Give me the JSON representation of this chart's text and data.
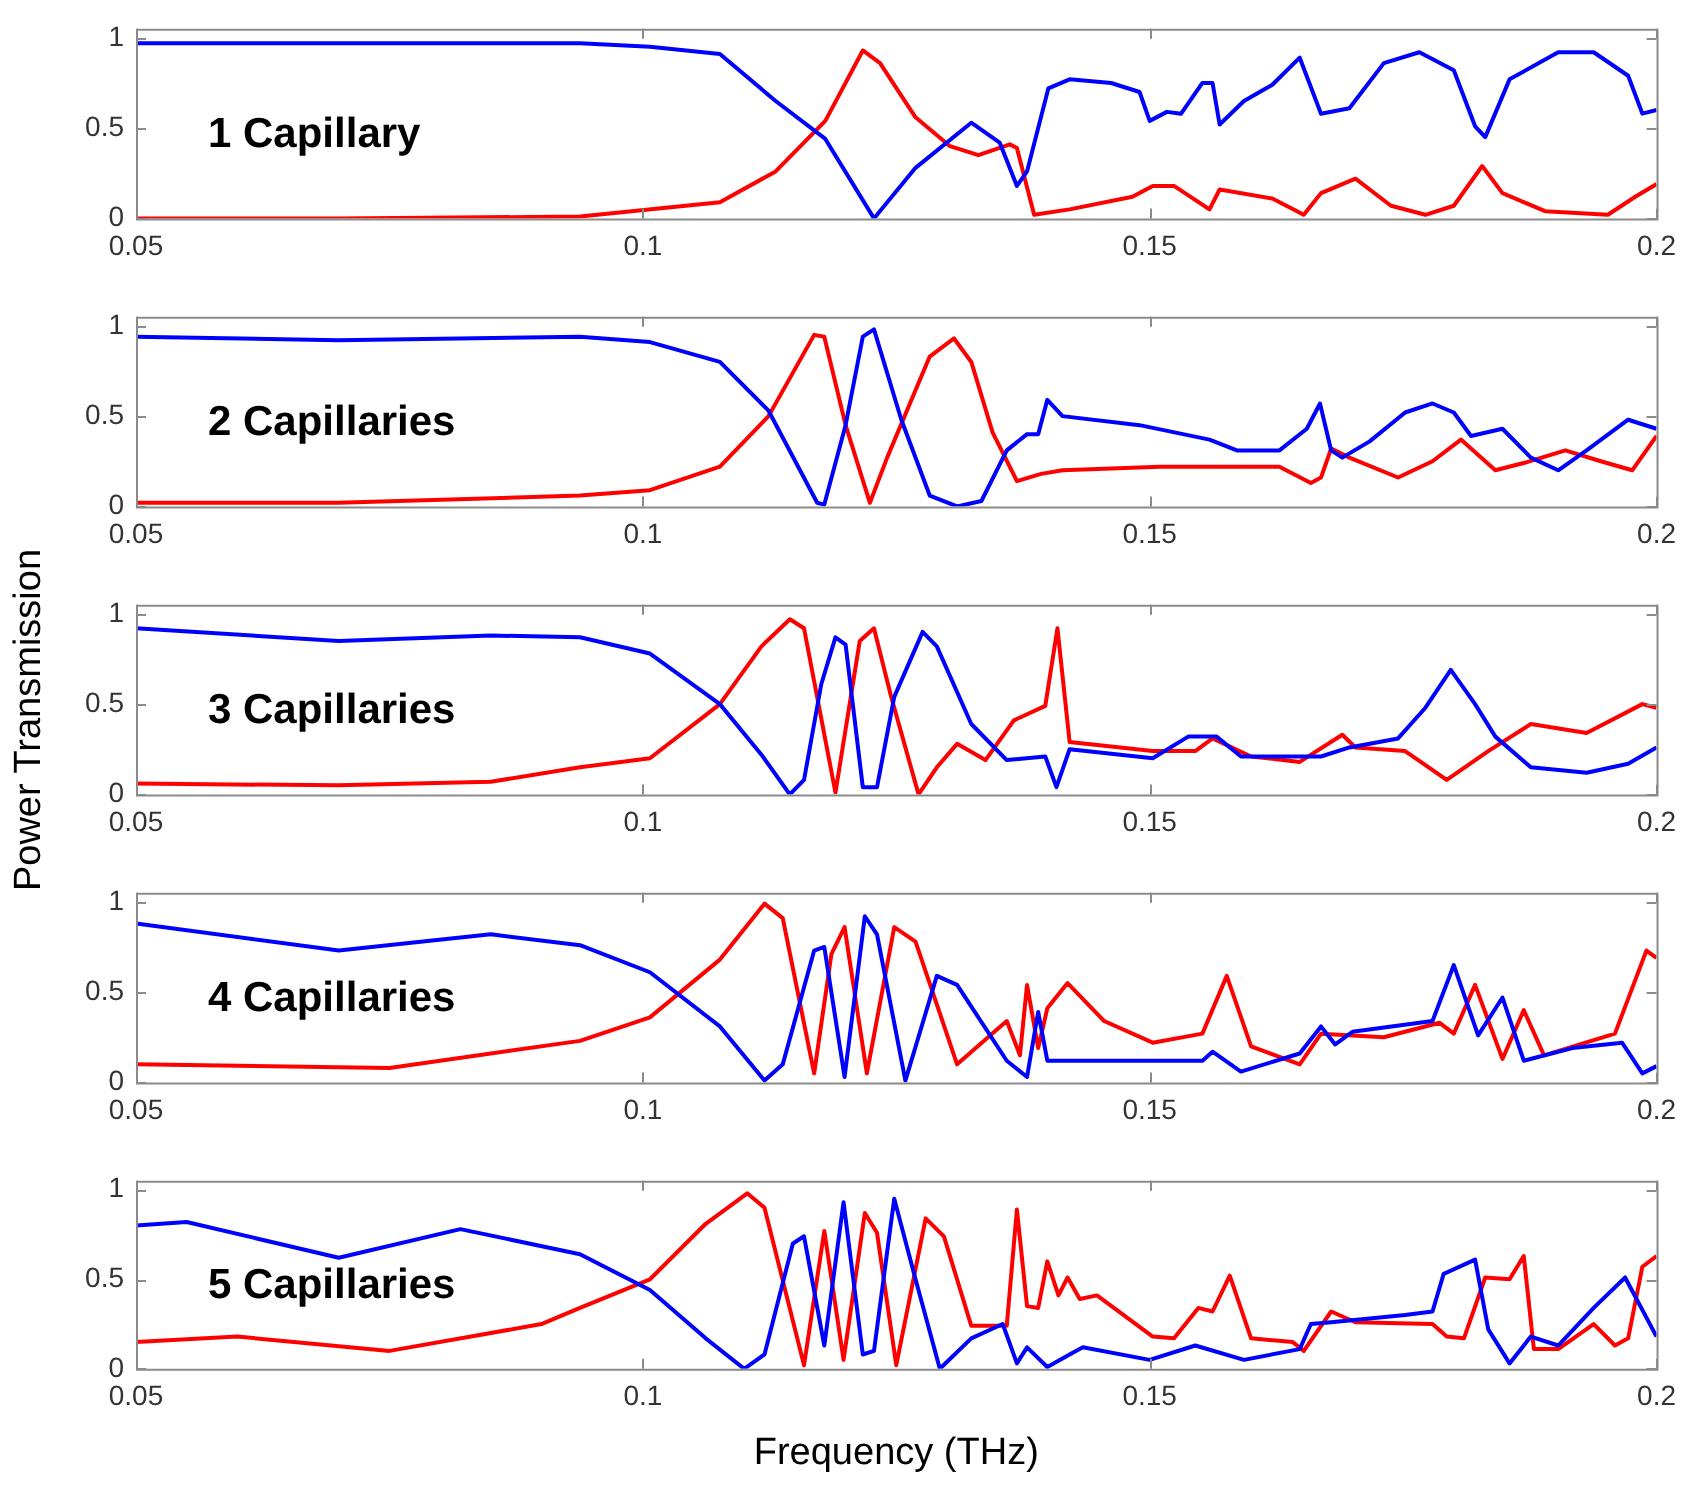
{
  "chart_data": [
    {
      "type": "line",
      "annotations": [
        "1 Capillary"
      ],
      "xlim": [
        0.05,
        0.2
      ],
      "xticks": [
        0.05,
        0.1,
        0.15,
        0.2
      ],
      "ylim": [
        0,
        1.05
      ],
      "yticks": [
        0,
        0.5,
        1
      ],
      "series": [
        {
          "color": "#0000ff",
          "x": [
            0.05,
            0.07,
            0.0938,
            0.1007,
            0.1076,
            0.1131,
            0.118,
            0.1228,
            0.1269,
            0.1324,
            0.1352,
            0.1369,
            0.1379,
            0.14,
            0.1421,
            0.1462,
            0.149,
            0.15,
            0.1517,
            0.1531,
            0.1552,
            0.1562,
            0.1569,
            0.1593,
            0.1621,
            0.1648,
            0.1669,
            0.1697,
            0.1731,
            0.1766,
            0.18,
            0.1821,
            0.1831,
            0.1855,
            0.1903,
            0.1938,
            0.1972,
            0.1986,
            0.2
          ],
          "values": [
            0.97,
            0.97,
            0.97,
            0.95,
            0.91,
            0.65,
            0.44,
            0,
            0.28,
            0.53,
            0.42,
            0.18,
            0.26,
            0.72,
            0.77,
            0.75,
            0.7,
            0.54,
            0.59,
            0.58,
            0.75,
            0.75,
            0.52,
            0.65,
            0.74,
            0.89,
            0.58,
            0.61,
            0.86,
            0.92,
            0.82,
            0.51,
            0.45,
            0.77,
            0.92,
            0.92,
            0.79,
            0.58,
            0.6
          ]
        },
        {
          "color": "#ff0000",
          "x": [
            0.05,
            0.07,
            0.0938,
            0.1076,
            0.1131,
            0.118,
            0.1217,
            0.1234,
            0.1269,
            0.1303,
            0.1331,
            0.1362,
            0.1369,
            0.1386,
            0.1421,
            0.1483,
            0.1503,
            0.1524,
            0.1559,
            0.1569,
            0.1621,
            0.1652,
            0.1669,
            0.1703,
            0.1738,
            0.1772,
            0.18,
            0.1828,
            0.1848,
            0.189,
            0.1952,
            0.1979,
            0.2
          ],
          "values": [
            0,
            0,
            0.01,
            0.09,
            0.26,
            0.54,
            0.93,
            0.86,
            0.56,
            0.4,
            0.35,
            0.41,
            0.39,
            0.02,
            0.05,
            0.12,
            0.18,
            0.18,
            0.05,
            0.16,
            0.11,
            0.02,
            0.14,
            0.22,
            0.07,
            0.02,
            0.07,
            0.29,
            0.14,
            0.04,
            0.02,
            0.12,
            0.19
          ]
        }
      ]
    },
    {
      "type": "line",
      "annotations": [
        "2 Capillaries"
      ],
      "xlim": [
        0.05,
        0.2
      ],
      "xticks": [
        0.05,
        0.1,
        0.15,
        0.2
      ],
      "ylim": [
        0,
        1.05
      ],
      "yticks": [
        0,
        0.5,
        1
      ],
      "series": [
        {
          "color": "#0000ff",
          "x": [
            0.05,
            0.07,
            0.0938,
            0.1007,
            0.1076,
            0.1124,
            0.1172,
            0.1179,
            0.12,
            0.1217,
            0.1228,
            0.1255,
            0.1283,
            0.131,
            0.1334,
            0.1359,
            0.1379,
            0.139,
            0.1399,
            0.1414,
            0.149,
            0.1559,
            0.1586,
            0.1628,
            0.1655,
            0.1668,
            0.1679,
            0.169,
            0.1717,
            0.1752,
            0.1779,
            0.18,
            0.1817,
            0.1848,
            0.1876,
            0.1903,
            0.1931,
            0.1972,
            0.2
          ],
          "values": [
            0.94,
            0.92,
            0.94,
            0.91,
            0.8,
            0.53,
            0.02,
            0.01,
            0.45,
            0.94,
            0.98,
            0.48,
            0.06,
            0,
            0.03,
            0.31,
            0.4,
            0.4,
            0.59,
            0.5,
            0.45,
            0.37,
            0.31,
            0.31,
            0.43,
            0.57,
            0.31,
            0.27,
            0.36,
            0.52,
            0.57,
            0.52,
            0.39,
            0.43,
            0.27,
            0.2,
            0.31,
            0.48,
            0.43
          ]
        },
        {
          "color": "#ff0000",
          "x": [
            0.05,
            0.07,
            0.0938,
            0.1007,
            0.1076,
            0.1124,
            0.1169,
            0.1179,
            0.12,
            0.1224,
            0.1241,
            0.1283,
            0.1307,
            0.1324,
            0.1345,
            0.1369,
            0.1393,
            0.1414,
            0.151,
            0.1628,
            0.1659,
            0.1669,
            0.1679,
            0.1697,
            0.1745,
            0.1779,
            0.1807,
            0.1841,
            0.1869,
            0.191,
            0.1945,
            0.1976,
            0.2
          ],
          "values": [
            0.02,
            0.02,
            0.06,
            0.09,
            0.22,
            0.5,
            0.95,
            0.94,
            0.45,
            0.02,
            0.27,
            0.83,
            0.93,
            0.8,
            0.41,
            0.14,
            0.18,
            0.2,
            0.22,
            0.22,
            0.13,
            0.16,
            0.32,
            0.27,
            0.16,
            0.25,
            0.37,
            0.2,
            0.24,
            0.31,
            0.25,
            0.2,
            0.39
          ]
        }
      ]
    },
    {
      "type": "line",
      "annotations": [
        "3 Capillaries"
      ],
      "ylabel": "Power Transmission",
      "xlim": [
        0.05,
        0.2
      ],
      "xticks": [
        0.05,
        0.1,
        0.15,
        0.2
      ],
      "ylim": [
        0,
        1.05
      ],
      "yticks": [
        0,
        0.5,
        1
      ],
      "series": [
        {
          "color": "#0000ff",
          "x": [
            0.05,
            0.07,
            0.085,
            0.0938,
            0.1007,
            0.1076,
            0.1117,
            0.1145,
            0.1159,
            0.1176,
            0.119,
            0.12,
            0.1217,
            0.1231,
            0.1248,
            0.1276,
            0.129,
            0.1324,
            0.1359,
            0.1397,
            0.1408,
            0.1421,
            0.1503,
            0.1538,
            0.1566,
            0.159,
            0.1669,
            0.1697,
            0.1745,
            0.1772,
            0.1797,
            0.1821,
            0.1841,
            0.1876,
            0.1931,
            0.1972,
            0.2
          ],
          "values": [
            0.92,
            0.85,
            0.88,
            0.87,
            0.78,
            0.5,
            0.22,
            0,
            0.08,
            0.61,
            0.87,
            0.83,
            0.04,
            0.04,
            0.54,
            0.9,
            0.82,
            0.39,
            0.19,
            0.21,
            0.04,
            0.25,
            0.2,
            0.32,
            0.32,
            0.21,
            0.21,
            0.26,
            0.31,
            0.48,
            0.69,
            0.5,
            0.32,
            0.15,
            0.12,
            0.17,
            0.26
          ]
        },
        {
          "color": "#ff0000",
          "x": [
            0.05,
            0.07,
            0.085,
            0.0938,
            0.1007,
            0.1076,
            0.1117,
            0.1145,
            0.1159,
            0.119,
            0.1214,
            0.1228,
            0.1245,
            0.1272,
            0.129,
            0.131,
            0.1338,
            0.1366,
            0.1397,
            0.1409,
            0.1421,
            0.1503,
            0.1545,
            0.1562,
            0.16,
            0.1648,
            0.169,
            0.1703,
            0.1752,
            0.1793,
            0.1834,
            0.1876,
            0.1931,
            0.1986,
            0.2
          ],
          "values": [
            0.06,
            0.05,
            0.07,
            0.15,
            0.2,
            0.5,
            0.82,
            0.97,
            0.92,
            0.01,
            0.85,
            0.92,
            0.54,
            0,
            0.15,
            0.28,
            0.19,
            0.41,
            0.49,
            0.92,
            0.29,
            0.24,
            0.24,
            0.31,
            0.21,
            0.18,
            0.33,
            0.26,
            0.24,
            0.08,
            0.24,
            0.39,
            0.34,
            0.5,
            0.48
          ]
        }
      ]
    },
    {
      "type": "line",
      "annotations": [
        "4 Capillaries"
      ],
      "xlim": [
        0.05,
        0.2
      ],
      "xticks": [
        0.05,
        0.1,
        0.15,
        0.2
      ],
      "ylim": [
        0,
        1.05
      ],
      "yticks": [
        0,
        0.5,
        1
      ],
      "series": [
        {
          "color": "#0000ff",
          "x": [
            0.05,
            0.07,
            0.085,
            0.0938,
            0.1007,
            0.1076,
            0.112,
            0.1138,
            0.1169,
            0.1179,
            0.1199,
            0.1219,
            0.1231,
            0.1259,
            0.129,
            0.131,
            0.1359,
            0.1379,
            0.139,
            0.1399,
            0.149,
            0.1552,
            0.1562,
            0.159,
            0.1648,
            0.1669,
            0.1683,
            0.17,
            0.1779,
            0.18,
            0.1824,
            0.1848,
            0.1869,
            0.1917,
            0.1966,
            0.1986,
            0.2
          ],
          "values": [
            0.88,
            0.73,
            0.82,
            0.76,
            0.61,
            0.31,
            0.01,
            0.1,
            0.73,
            0.75,
            0.03,
            0.92,
            0.82,
            0.01,
            0.59,
            0.54,
            0.12,
            0.03,
            0.39,
            0.12,
            0.12,
            0.12,
            0.17,
            0.06,
            0.16,
            0.31,
            0.21,
            0.28,
            0.34,
            0.65,
            0.26,
            0.47,
            0.12,
            0.19,
            0.22,
            0.05,
            0.09
          ]
        },
        {
          "color": "#ff0000",
          "x": [
            0.05,
            0.075,
            0.0938,
            0.1007,
            0.1076,
            0.112,
            0.1138,
            0.1169,
            0.1186,
            0.1199,
            0.1221,
            0.1248,
            0.1269,
            0.131,
            0.1359,
            0.1372,
            0.1379,
            0.139,
            0.1399,
            0.1419,
            0.1455,
            0.1503,
            0.1552,
            0.1576,
            0.16,
            0.1648,
            0.1669,
            0.1731,
            0.1786,
            0.18,
            0.1821,
            0.1848,
            0.1869,
            0.1889,
            0.1959,
            0.199,
            0.2
          ],
          "values": [
            0.1,
            0.08,
            0.23,
            0.36,
            0.68,
            0.99,
            0.91,
            0.05,
            0.71,
            0.86,
            0.05,
            0.86,
            0.78,
            0.1,
            0.34,
            0.15,
            0.54,
            0.19,
            0.41,
            0.55,
            0.34,
            0.22,
            0.27,
            0.59,
            0.2,
            0.1,
            0.27,
            0.25,
            0.33,
            0.27,
            0.54,
            0.13,
            0.4,
            0.15,
            0.27,
            0.73,
            0.69
          ]
        }
      ]
    },
    {
      "type": "line",
      "annotations": [
        "5 Capillaries"
      ],
      "xlabel": "Frequency (THz)",
      "xlim": [
        0.05,
        0.2
      ],
      "xticks": [
        0.05,
        0.1,
        0.15,
        0.2
      ],
      "ylim": [
        0,
        1.05
      ],
      "yticks": [
        0,
        0.5,
        1
      ],
      "series": [
        {
          "color": "#0000ff",
          "x": [
            0.05,
            0.055,
            0.07,
            0.082,
            0.0938,
            0.1007,
            0.1062,
            0.11,
            0.112,
            0.1148,
            0.1159,
            0.1179,
            0.1198,
            0.1217,
            0.1228,
            0.1248,
            0.1269,
            0.1293,
            0.1324,
            0.1355,
            0.1369,
            0.1379,
            0.1399,
            0.1421,
            0.1434,
            0.15,
            0.1545,
            0.1593,
            0.1648,
            0.1659,
            0.1679,
            0.1752,
            0.1779,
            0.179,
            0.1821,
            0.1834,
            0.1855,
            0.1876,
            0.1903,
            0.1938,
            0.1969,
            0.2
          ],
          "values": [
            0.8,
            0.82,
            0.62,
            0.78,
            0.64,
            0.44,
            0.17,
            0,
            0.08,
            0.7,
            0.74,
            0.13,
            0.93,
            0.08,
            0.1,
            0.95,
            0.5,
            0,
            0.17,
            0.25,
            0.03,
            0.12,
            0.01,
            0.08,
            0.12,
            0.05,
            0.13,
            0.05,
            0.11,
            0.25,
            0.26,
            0.3,
            0.32,
            0.53,
            0.61,
            0.22,
            0.03,
            0.18,
            0.13,
            0.34,
            0.51,
            0.18
          ]
        },
        {
          "color": "#ff0000",
          "x": [
            0.05,
            0.06,
            0.075,
            0.09,
            0.0938,
            0.1007,
            0.1062,
            0.1103,
            0.112,
            0.1159,
            0.1179,
            0.1198,
            0.1219,
            0.1231,
            0.125,
            0.1279,
            0.1297,
            0.1324,
            0.1359,
            0.1369,
            0.1379,
            0.139,
            0.1399,
            0.141,
            0.1419,
            0.1431,
            0.1448,
            0.1503,
            0.1524,
            0.1548,
            0.1562,
            0.1579,
            0.16,
            0.1641,
            0.1652,
            0.1679,
            0.1703,
            0.1779,
            0.1793,
            0.181,
            0.1831,
            0.1855,
            0.1869,
            0.1879,
            0.1903,
            0.1938,
            0.1959,
            0.1972,
            0.1986,
            0.2
          ],
          "values": [
            0.15,
            0.18,
            0.1,
            0.25,
            0.34,
            0.5,
            0.81,
            0.98,
            0.9,
            0.02,
            0.77,
            0.05,
            0.87,
            0.76,
            0.02,
            0.84,
            0.74,
            0.24,
            0.24,
            0.89,
            0.35,
            0.34,
            0.6,
            0.41,
            0.51,
            0.39,
            0.41,
            0.18,
            0.17,
            0.34,
            0.32,
            0.52,
            0.17,
            0.15,
            0.1,
            0.32,
            0.26,
            0.25,
            0.18,
            0.17,
            0.51,
            0.5,
            0.63,
            0.11,
            0.11,
            0.25,
            0.13,
            0.17,
            0.57,
            0.63
          ]
        }
      ]
    }
  ]
}
